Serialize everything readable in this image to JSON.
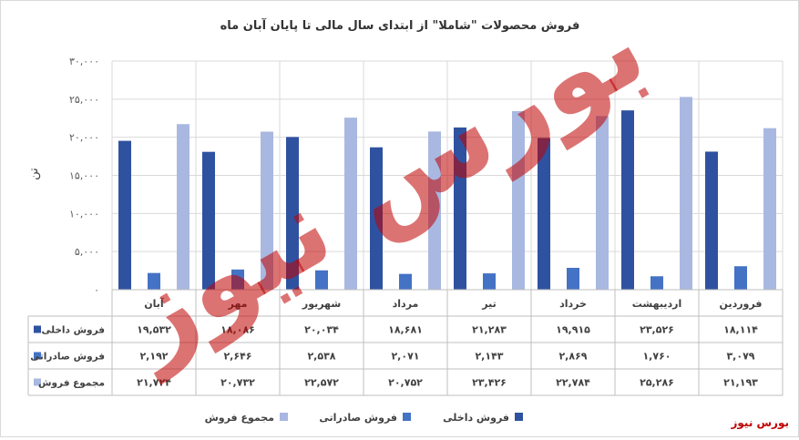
{
  "chart_data": {
    "type": "bar",
    "title": "فروش محصولات \"شاملا\" از ابتدای سال مالی تا پایان آبان ماه",
    "ylabel": "تن",
    "ylim": [
      0,
      30000
    ],
    "y_ticks": [
      0,
      5000,
      10000,
      15000,
      20000,
      25000,
      30000
    ],
    "y_tick_labels": [
      "۰",
      "۵,۰۰۰",
      "۱۰,۰۰۰",
      "۱۵,۰۰۰",
      "۲۰,۰۰۰",
      "۲۵,۰۰۰",
      "۳۰,۰۰۰"
    ],
    "grid": true,
    "legend_position": "bottom",
    "categories": [
      "فروردین",
      "اردیبهشت",
      "خرداد",
      "تیر",
      "مرداد",
      "شهریور",
      "مهر",
      "آبان"
    ],
    "series": [
      {
        "name": "فروش داخلی",
        "color": "#2f52a0",
        "values": [
          18114,
          23526,
          19915,
          21283,
          18681,
          20034,
          18086,
          19532
        ],
        "labels": [
          "۱۸,۱۱۴",
          "۲۳,۵۲۶",
          "۱۹,۹۱۵",
          "۲۱,۲۸۳",
          "۱۸,۶۸۱",
          "۲۰,۰۳۴",
          "۱۸,۰۸۶",
          "۱۹,۵۳۲"
        ]
      },
      {
        "name": "فروش صادراتی",
        "color": "#4472c4",
        "values": [
          3079,
          1760,
          2869,
          2143,
          2071,
          2538,
          2646,
          2192
        ],
        "labels": [
          "۳,۰۷۹",
          "۱,۷۶۰",
          "۲,۸۶۹",
          "۲,۱۴۳",
          "۲,۰۷۱",
          "۲,۵۳۸",
          "۲,۶۴۶",
          "۲,۱۹۲"
        ]
      },
      {
        "name": "مجموع فروش",
        "color": "#a9b8e0",
        "values": [
          21193,
          25286,
          22784,
          23426,
          20752,
          22572,
          20732,
          21724
        ],
        "labels": [
          "۲۱,۱۹۳",
          "۲۵,۲۸۶",
          "۲۲,۷۸۴",
          "۲۳,۴۲۶",
          "۲۰,۷۵۲",
          "۲۲,۵۷۲",
          "۲۰,۷۳۲",
          "۲۱,۷۲۴"
        ]
      }
    ]
  },
  "watermark": {
    "text": "بورس نیوز",
    "color": "#c00000"
  },
  "credit": "بورس نیوز"
}
